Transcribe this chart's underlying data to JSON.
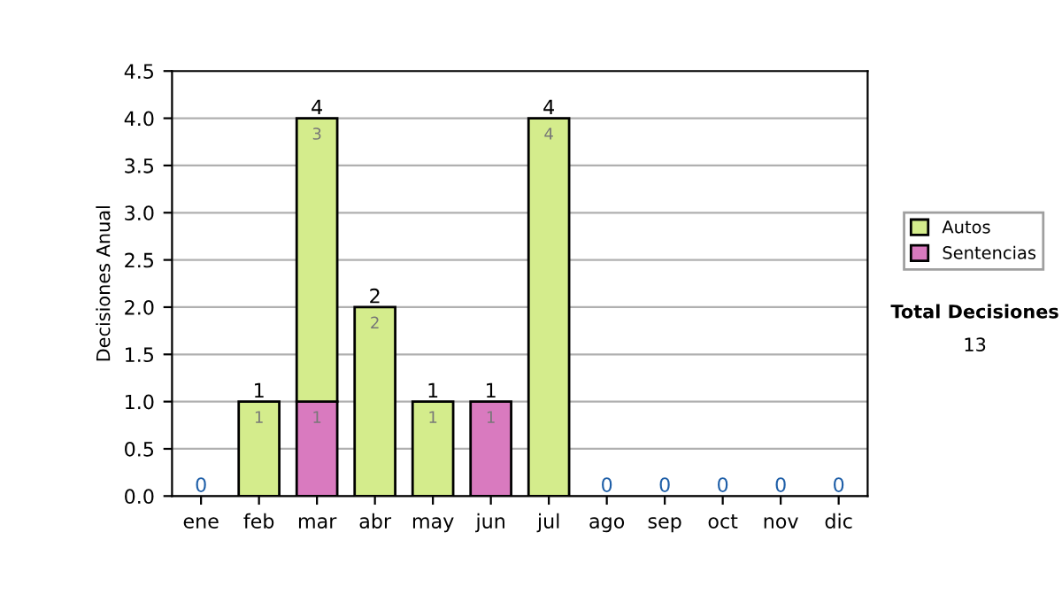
{
  "chart_data": {
    "type": "bar",
    "stacked": true,
    "ylabel": "Decisiones Anual",
    "categories": [
      "ene",
      "feb",
      "mar",
      "abr",
      "may",
      "jun",
      "jul",
      "ago",
      "sep",
      "oct",
      "nov",
      "dic"
    ],
    "series": [
      {
        "name": "Sentencias",
        "color": "#d97abf",
        "values": [
          0,
          0,
          1,
          0,
          0,
          1,
          0,
          0,
          0,
          0,
          0,
          0
        ],
        "value_labels": [
          null,
          null,
          "1",
          null,
          null,
          "1",
          null,
          null,
          null,
          null,
          null,
          null
        ]
      },
      {
        "name": "Autos",
        "color": "#d4ec8c",
        "values": [
          0,
          1,
          3,
          2,
          1,
          0,
          4,
          0,
          0,
          0,
          0,
          0
        ],
        "value_labels": [
          null,
          "1",
          "3",
          "2",
          "1",
          null,
          "4",
          null,
          null,
          null,
          null,
          null
        ]
      }
    ],
    "totals": [
      "0",
      "1",
      "4",
      "2",
      "1",
      "1",
      "4",
      "0",
      "0",
      "0",
      "0",
      "0"
    ],
    "ylim": [
      0,
      4.5
    ],
    "yticks": [
      {
        "value": 0,
        "label": "0.0"
      },
      {
        "value": 0.5,
        "label": "0.5"
      },
      {
        "value": 1,
        "label": "1.0"
      },
      {
        "value": 1.5,
        "label": "1.5"
      },
      {
        "value": 2,
        "label": "2.0"
      },
      {
        "value": 2.5,
        "label": "2.5"
      },
      {
        "value": 3,
        "label": "3.0"
      },
      {
        "value": 3.5,
        "label": "3.5"
      },
      {
        "value": 4,
        "label": "4.0"
      },
      {
        "value": 4.5,
        "label": "4.5"
      }
    ],
    "grid": "y",
    "legend": "right",
    "annotations": [
      "Total Decisiones",
      "13"
    ]
  }
}
